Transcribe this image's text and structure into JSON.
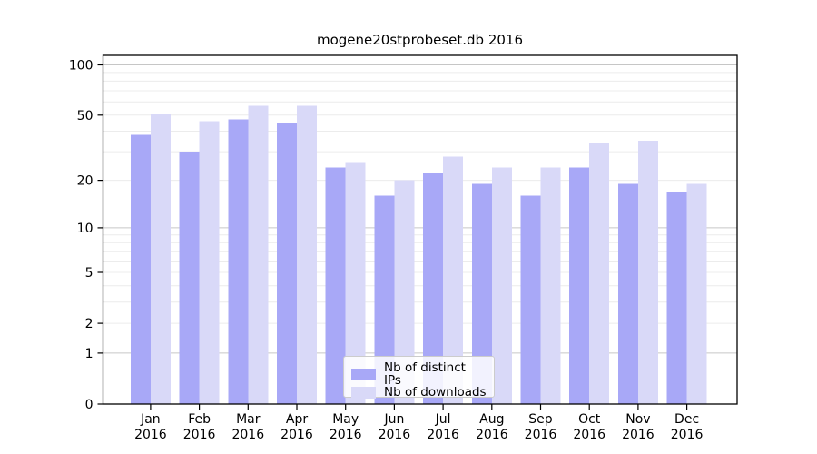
{
  "title": "mogene20stprobeset.db 2016",
  "legend": {
    "items": [
      {
        "label": "Nb of distinct IPs",
        "color": "#a8a8f7"
      },
      {
        "label": "Nb of downloads",
        "color": "#d9d9f8"
      }
    ]
  },
  "chart_data": {
    "type": "bar",
    "title": "mogene20stprobeset.db 2016",
    "categories": [
      "Jan 2016",
      "Feb 2016",
      "Mar 2016",
      "Apr 2016",
      "May 2016",
      "Jun 2016",
      "Jul 2016",
      "Aug 2016",
      "Sep 2016",
      "Oct 2016",
      "Nov 2016",
      "Dec 2016"
    ],
    "x_tick_line1": [
      "Jan",
      "Feb",
      "Mar",
      "Apr",
      "May",
      "Jun",
      "Jul",
      "Aug",
      "Sep",
      "Oct",
      "Nov",
      "Dec"
    ],
    "x_tick_line2": "2016",
    "series": [
      {
        "name": "Nb of distinct IPs",
        "color": "#a8a8f7",
        "values": [
          38,
          30,
          47,
          45,
          24,
          16,
          22,
          19,
          16,
          24,
          19,
          17
        ]
      },
      {
        "name": "Nb of downloads",
        "color": "#d9d9f8",
        "values": [
          51,
          46,
          57,
          57,
          26,
          20,
          28,
          24,
          24,
          34,
          35,
          19
        ]
      }
    ],
    "xlabel": "",
    "ylabel": "",
    "yscale": "log1p",
    "y_ticks": [
      0,
      1,
      2,
      5,
      10,
      20,
      50,
      100
    ],
    "y_major_gridlines": [
      1,
      10,
      100
    ],
    "y_minor_gridlines": [
      2,
      3,
      4,
      5,
      6,
      7,
      8,
      9,
      20,
      30,
      40,
      50,
      60,
      70,
      80,
      90
    ],
    "ylim": [
      0,
      114
    ],
    "grid": "horizontal",
    "legend_position": "lower center"
  },
  "colors": {
    "major_grid": "#c6c6c6",
    "minor_grid": "#ececec",
    "axis": "#000000",
    "background": "#ffffff"
  }
}
